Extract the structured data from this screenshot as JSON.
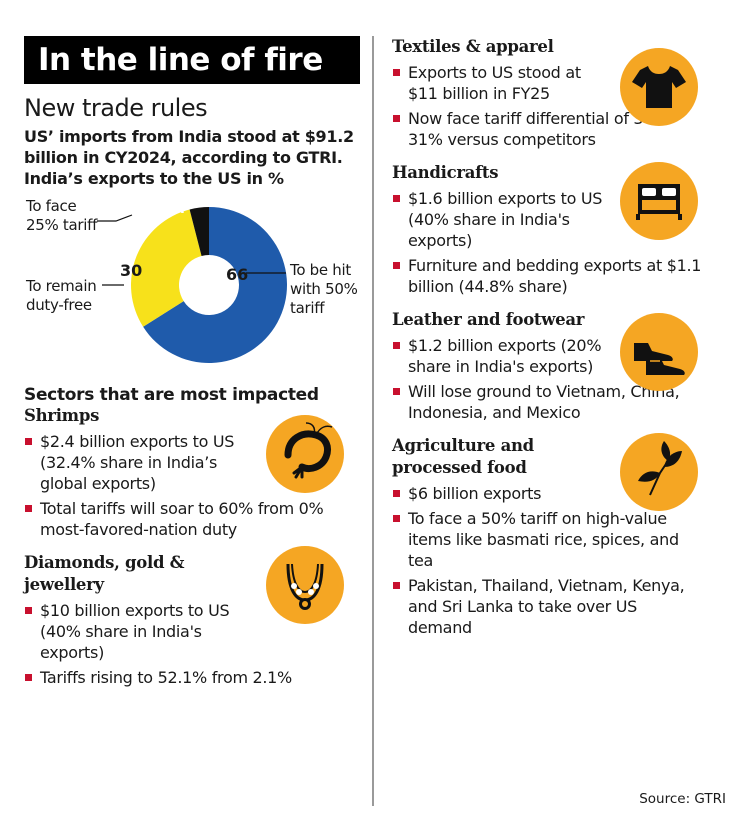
{
  "header": {
    "title": "In the line of fire",
    "subtitle": "New trade rules",
    "intro": "US’ imports from India stood at $91.2 billion in CY2024, according to GTRI.",
    "chart_caption": "India’s exports to the US in %"
  },
  "chart_data": {
    "type": "pie",
    "style": "donut",
    "title": "India’s exports to the US in %",
    "labels": [
      "To be hit with 50% tariff",
      "To remain duty-free",
      "To face 25% tariff"
    ],
    "values": [
      66,
      30,
      4
    ],
    "colors": [
      "#1f5bab",
      "#f7e11b",
      "#111111"
    ]
  },
  "donut_labels": {
    "hit_line1": "To be hit",
    "hit_line2": "with 50%",
    "hit_line3": "tariff",
    "free_line1": "To remain",
    "free_line2": "duty-free",
    "face_line1": "To face",
    "face_line2": "25% tariff",
    "val_hit": "66",
    "val_free": "30",
    "val_face": "4"
  },
  "sectors_heading": "Sectors that are most impacted",
  "sectors": {
    "shrimps": {
      "title": "Shrimps",
      "icon": "shrimp-icon",
      "b1": "$2.4 billion exports to US (32.4% share in India’s global exports)",
      "b2": "Total tariffs will soar to 60% from 0% most-favored-nation duty"
    },
    "diamonds": {
      "title_line1": "Diamonds, gold &",
      "title_line2": "jewellery",
      "icon": "necklace-icon",
      "b1": "$10 billion exports to US (40% share in India's exports)",
      "b2": "Tariffs rising to 52.1% from 2.1%"
    },
    "textiles": {
      "title": "Textiles & apparel",
      "icon": "tshirt-icon",
      "b1": "Exports to US stood at $11 billion in FY25",
      "b2": "Now face tariff differential of 30-31% versus competitors"
    },
    "handicrafts": {
      "title": "Handicrafts",
      "icon": "bed-icon",
      "b1": "$1.6 billion exports to US (40% share in India's exports)",
      "b2": "Furniture and bedding exports at $1.1 billion (44.8% share)"
    },
    "leather": {
      "title": "Leather and footwear",
      "icon": "shoes-icon",
      "b1": "$1.2 billion exports (20% share in India's exports)",
      "b2": "Will lose ground to Vietnam, China, Indonesia, and Mexico"
    },
    "agri": {
      "title_line1": "Agriculture and",
      "title_line2": "processed food",
      "icon": "tea-leaf-icon",
      "b1": "$6 billion exports",
      "b2": "To face a 50% tariff on high-value items like basmati rice, spices, and tea",
      "b3": "Pakistan, Thailand, Vietnam, Kenya, and Sri Lanka to take over US demand"
    }
  },
  "source": "Source: GTRI",
  "colors": {
    "accent_orange": "#f5a623",
    "bullet_red": "#c8102e",
    "banner_black": "#000000"
  }
}
